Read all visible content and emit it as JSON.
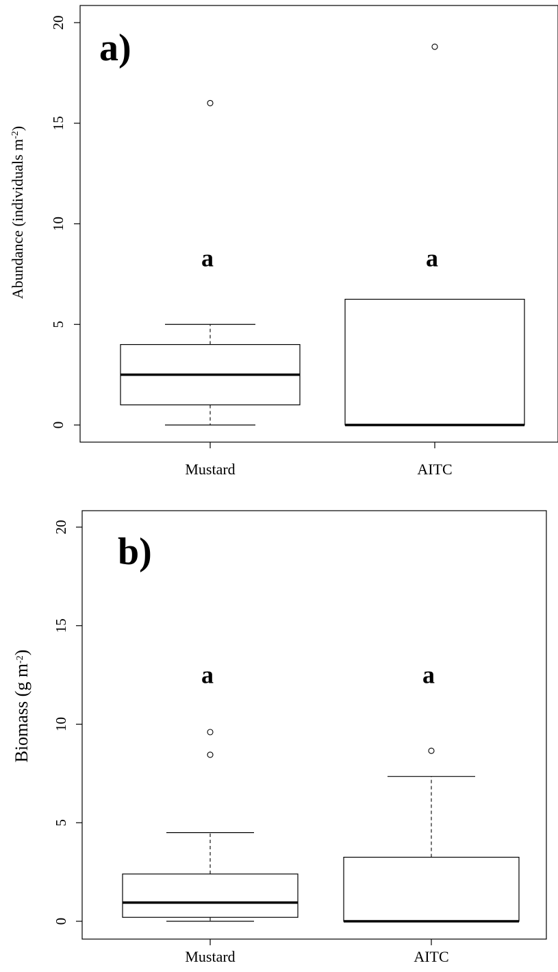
{
  "chart_data": [
    {
      "type": "box",
      "panel_label": "a)",
      "ylabel": "Abundance (individuals m",
      "ylabel_sup": "-2",
      "ylabel_close": ")",
      "ylim": [
        0,
        20
      ],
      "yticks": [
        "0",
        "5",
        "10",
        "15",
        "20"
      ],
      "categories": [
        "Mustard",
        "AITC"
      ],
      "groups": [
        {
          "name": "Mustard",
          "min": 0,
          "q1": 1,
          "median": 2.5,
          "q3": 4,
          "max": 5,
          "outliers": [
            16
          ],
          "letter": "a"
        },
        {
          "name": "AITC",
          "min": 0,
          "q1": 0,
          "median": 0,
          "q3": 6.25,
          "max": 6.25,
          "outliers": [
            18.8
          ],
          "letter": "a"
        }
      ],
      "letter_y": 8.3
    },
    {
      "type": "box",
      "panel_label": "b)",
      "ylabel": "Biomass (g  m",
      "ylabel_sup": "-2",
      "ylabel_close": ")",
      "ylim": [
        0,
        20
      ],
      "yticks": [
        "0",
        "5",
        "10",
        "15",
        "20"
      ],
      "categories": [
        "Mustard",
        "AITC"
      ],
      "groups": [
        {
          "name": "Mustard",
          "min": 0,
          "q1": 0.2,
          "median": 0.95,
          "q3": 2.4,
          "max": 4.5,
          "outliers": [
            9.6,
            8.45
          ],
          "letter": "a"
        },
        {
          "name": "AITC",
          "min": 0,
          "q1": 0,
          "median": 0,
          "q3": 3.25,
          "max": 7.35,
          "outliers": [
            8.65
          ],
          "letter": "a"
        }
      ],
      "letter_y": 12.5
    }
  ]
}
